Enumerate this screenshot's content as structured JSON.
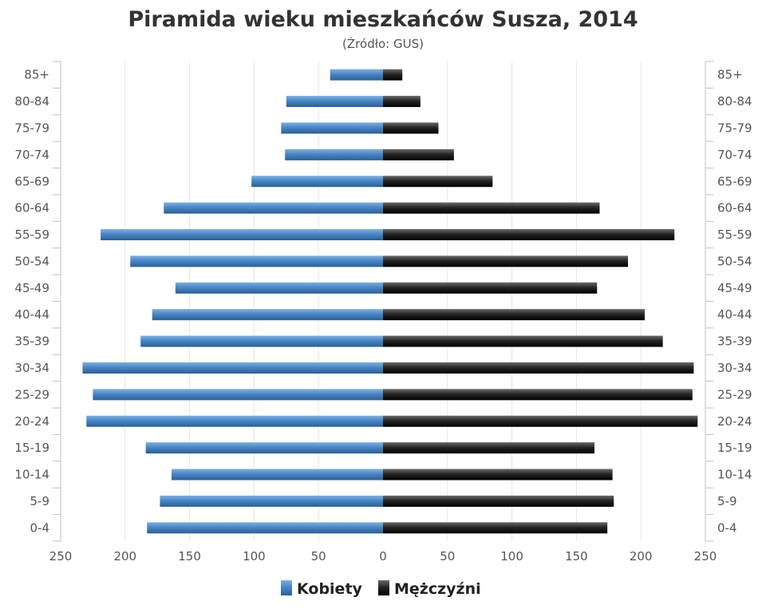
{
  "chart_data": {
    "type": "bar",
    "title": "Piramida wieku mieszkańców Susza, 2014",
    "subtitle": "(Źródło: GUS)",
    "categories": [
      "85+",
      "80-84",
      "75-79",
      "70-74",
      "65-69",
      "60-64",
      "55-59",
      "50-54",
      "45-49",
      "40-44",
      "35-39",
      "30-34",
      "25-29",
      "20-24",
      "15-19",
      "10-14",
      "5-9",
      "0-4"
    ],
    "series": [
      {
        "name": "Kobiety",
        "values": [
          41,
          75,
          79,
          76,
          102,
          170,
          219,
          196,
          161,
          179,
          188,
          233,
          225,
          230,
          184,
          164,
          173,
          183
        ]
      },
      {
        "name": "Mężczyźni",
        "values": [
          15,
          29,
          43,
          55,
          85,
          168,
          226,
          190,
          166,
          203,
          217,
          241,
          240,
          244,
          164,
          178,
          179,
          174
        ]
      }
    ],
    "xlim": [
      -250,
      250
    ],
    "xticks": [
      "250",
      "200",
      "150",
      "100",
      "50",
      "0",
      "50",
      "100",
      "150",
      "200",
      "250"
    ],
    "grid": true,
    "legend_position": "bottom-center",
    "colors": {
      "Kobiety": "#3d79b5",
      "Mężczyźni": "#1c1c1c"
    }
  }
}
